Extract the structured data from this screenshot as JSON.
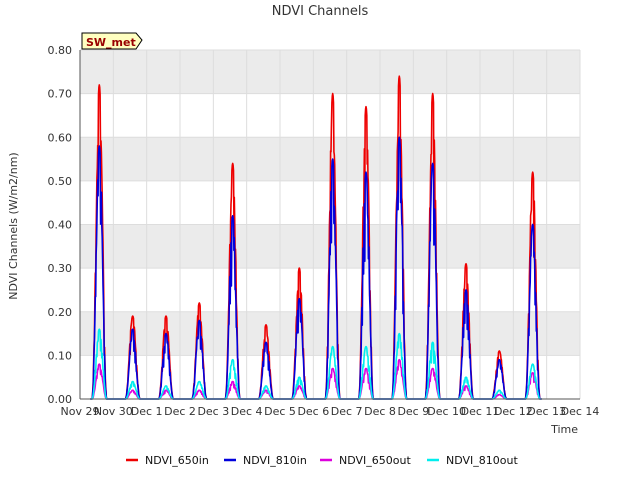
{
  "chart_data": {
    "type": "line",
    "title": "NDVI Channels",
    "xlabel": "Time",
    "ylabel": "NDVI Channels (W/m2/nm)",
    "ylim": [
      0,
      0.8
    ],
    "xlim": [
      0,
      15
    ],
    "yticks": [
      0,
      0.1,
      0.2,
      0.3,
      0.4,
      0.5,
      0.6,
      0.7,
      0.8
    ],
    "ytick_labels": [
      "0.00",
      "0.10",
      "0.20",
      "0.30",
      "0.40",
      "0.50",
      "0.60",
      "0.70",
      "0.80"
    ],
    "xticks": [
      0,
      1,
      2,
      3,
      4,
      5,
      6,
      7,
      8,
      9,
      10,
      11,
      12,
      13,
      14,
      15
    ],
    "xtick_labels": [
      "Nov 29",
      "Nov 30",
      "Dec 1",
      "Dec 2",
      "Dec 3",
      "Dec 4",
      "Dec 5",
      "Dec 6",
      "Dec 7",
      "Dec 8",
      "Dec 9",
      "Dec 10",
      "Dec 11",
      "Dec 12",
      "Dec 13",
      "Dec 14"
    ],
    "badge": {
      "text": "SW_met",
      "fill": "#ffffc0",
      "text_color": "#990000"
    },
    "background_bands": "#ebebeb",
    "grid": true,
    "legend": "bottom",
    "series": [
      {
        "name": "NDVI_650in",
        "color": "#ee0000",
        "days": [
          1,
          2,
          3,
          4,
          5,
          6,
          7,
          8,
          9,
          10,
          11,
          12,
          13,
          14
        ],
        "peaks": [
          0.72,
          0.19,
          0.19,
          0.22,
          0.54,
          0.17,
          0.3,
          0.7,
          0.67,
          0.74,
          0.7,
          0.31,
          0.11,
          0.52
        ]
      },
      {
        "name": "NDVI_810in",
        "color": "#0000dd",
        "days": [
          1,
          2,
          3,
          4,
          5,
          6,
          7,
          8,
          9,
          10,
          11,
          12,
          13,
          14
        ],
        "peaks": [
          0.58,
          0.16,
          0.15,
          0.18,
          0.42,
          0.13,
          0.23,
          0.55,
          0.52,
          0.6,
          0.54,
          0.25,
          0.09,
          0.4
        ]
      },
      {
        "name": "NDVI_650out",
        "color": "#dd00dd",
        "days": [
          1,
          2,
          3,
          4,
          5,
          6,
          7,
          8,
          9,
          10,
          11,
          12,
          13,
          14
        ],
        "peaks": [
          0.08,
          0.02,
          0.02,
          0.02,
          0.04,
          0.02,
          0.03,
          0.07,
          0.07,
          0.09,
          0.07,
          0.03,
          0.01,
          0.06
        ]
      },
      {
        "name": "NDVI_810out",
        "color": "#00eeee",
        "days": [
          1,
          2,
          3,
          4,
          5,
          6,
          7,
          8,
          9,
          10,
          11,
          12,
          13,
          14
        ],
        "peaks": [
          0.16,
          0.04,
          0.03,
          0.04,
          0.09,
          0.03,
          0.05,
          0.12,
          0.12,
          0.15,
          0.13,
          0.05,
          0.02,
          0.08
        ]
      }
    ]
  }
}
